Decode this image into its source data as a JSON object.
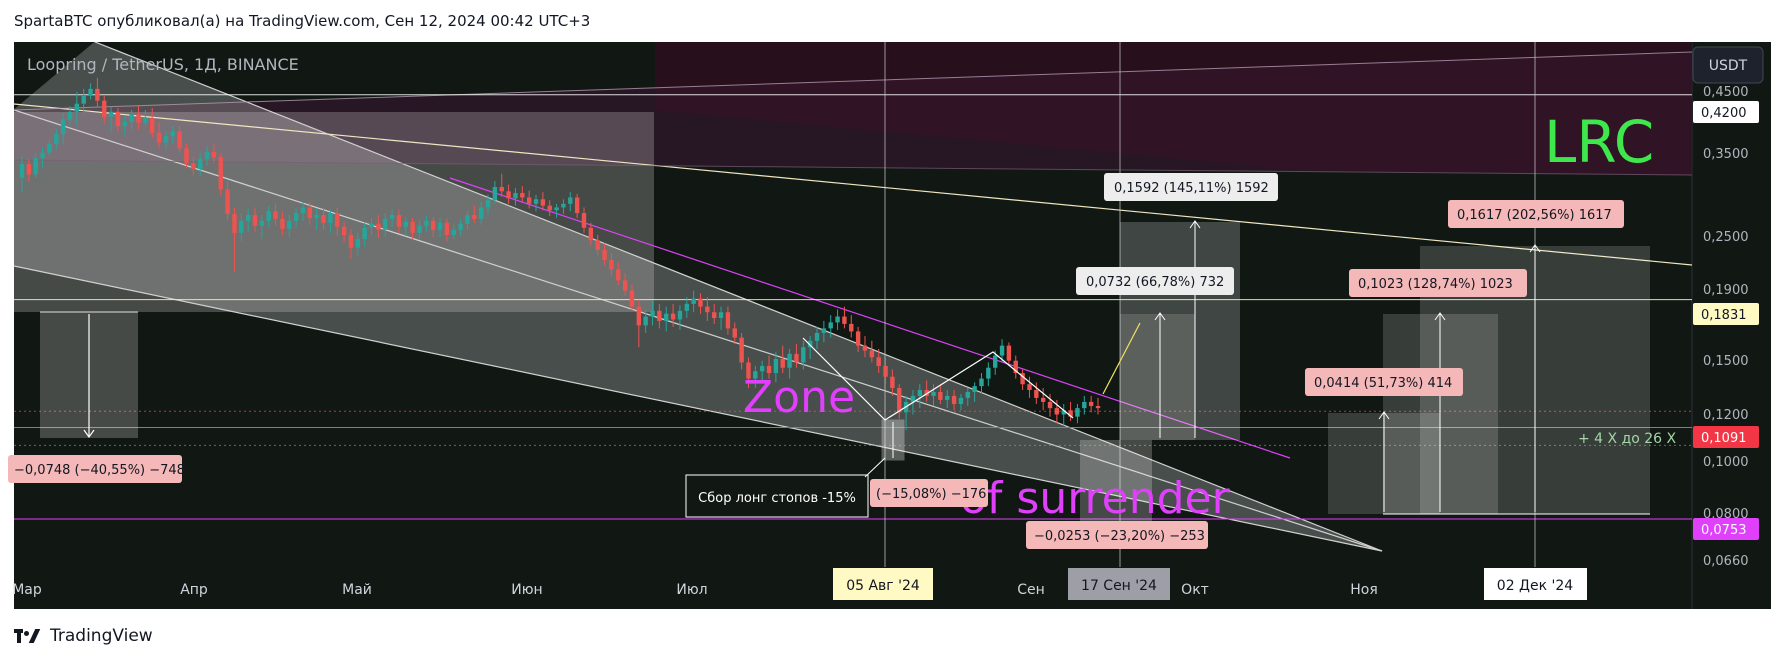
{
  "header": {
    "caption": "SpartaBTC опубликовал(а) на TradingView.com, Сен 12, 2024 00:42 UTC+3"
  },
  "footer": {
    "brand": "TradingView"
  },
  "colors": {
    "bg": "#111814",
    "bull": "#26a69a",
    "bear": "#ef5350",
    "magenta": "#e040fb",
    "white": "#ffffff",
    "lime": "#3ee84c",
    "yellow": "#f2e35e"
  },
  "chart_data": {
    "type": "candlestick",
    "symbol_label": "Loopring / TetherUS, 1Д, BINANCE",
    "currency": "USDT",
    "watermark": "LRC",
    "scale": "log",
    "ylim": [
      0.062,
      0.52
    ],
    "x_months": [
      "Мар",
      "Апр",
      "Май",
      "Июн",
      "Июл",
      "Авг",
      "Сен",
      "Окт",
      "Ноя",
      "Дек"
    ],
    "x_highlight": [
      {
        "label": "05 Авг '24"
      },
      {
        "label": "17 Сен '24"
      },
      {
        "label": "02 Дек '24"
      }
    ],
    "y_ticks": [
      "0,4500",
      "0,3500",
      "0,2500",
      "0,1900",
      "0,1500",
      "0,1200",
      "0,1000",
      "0,0800",
      "0,0660"
    ],
    "price_badges": [
      {
        "label": "0,4200",
        "price": 0.42
      },
      {
        "label": "0,1831",
        "price": 0.1831
      },
      {
        "label": "0,1091",
        "price": 0.1091
      },
      {
        "label": "0,0753",
        "price": 0.0753
      }
    ],
    "texts": {
      "zone": "Zone",
      "surrender": "of surrender",
      "stop_hunt": "Сбор лонг стопов -15%",
      "multiplier": "+ 4 X до 26 X"
    },
    "measure_labels": [
      {
        "label": "−0,0748 (−40,55%) −748"
      },
      {
        "label": "(−15,08%) −176"
      },
      {
        "label": "−0,0253 (−23,20%) −253"
      },
      {
        "label": "0,1592 (145,11%) 1592"
      },
      {
        "label": "0,0732 (66,78%) 732"
      },
      {
        "label": "0,1617 (202,56%) 1617"
      },
      {
        "label": "0,1023 (128,74%) 1023"
      },
      {
        "label": "0,0414 (51,73%) 414"
      }
    ],
    "candles": [
      {
        "x": 0,
        "o": 0.3,
        "h": 0.327,
        "l": 0.283,
        "c": 0.317
      },
      {
        "x": 1,
        "o": 0.317,
        "h": 0.324,
        "l": 0.295,
        "c": 0.304
      },
      {
        "x": 2,
        "o": 0.304,
        "h": 0.331,
        "l": 0.299,
        "c": 0.325
      },
      {
        "x": 3,
        "o": 0.325,
        "h": 0.339,
        "l": 0.313,
        "c": 0.332
      },
      {
        "x": 4,
        "o": 0.332,
        "h": 0.351,
        "l": 0.328,
        "c": 0.344
      },
      {
        "x": 5,
        "o": 0.344,
        "h": 0.366,
        "l": 0.336,
        "c": 0.358
      },
      {
        "x": 6,
        "o": 0.358,
        "h": 0.39,
        "l": 0.345,
        "c": 0.38
      },
      {
        "x": 7,
        "o": 0.38,
        "h": 0.401,
        "l": 0.372,
        "c": 0.392
      },
      {
        "x": 8,
        "o": 0.392,
        "h": 0.425,
        "l": 0.37,
        "c": 0.405
      },
      {
        "x": 9,
        "o": 0.405,
        "h": 0.43,
        "l": 0.389,
        "c": 0.418
      },
      {
        "x": 10,
        "o": 0.418,
        "h": 0.44,
        "l": 0.412,
        "c": 0.43
      },
      {
        "x": 11,
        "o": 0.43,
        "h": 0.45,
        "l": 0.399,
        "c": 0.41
      },
      {
        "x": 12,
        "o": 0.41,
        "h": 0.418,
        "l": 0.375,
        "c": 0.384
      },
      {
        "x": 13,
        "o": 0.384,
        "h": 0.4,
        "l": 0.361,
        "c": 0.392
      },
      {
        "x": 14,
        "o": 0.392,
        "h": 0.398,
        "l": 0.362,
        "c": 0.37
      },
      {
        "x": 15,
        "o": 0.37,
        "h": 0.385,
        "l": 0.357,
        "c": 0.376
      },
      {
        "x": 16,
        "o": 0.376,
        "h": 0.395,
        "l": 0.365,
        "c": 0.388
      },
      {
        "x": 17,
        "o": 0.388,
        "h": 0.401,
        "l": 0.365,
        "c": 0.375
      },
      {
        "x": 18,
        "o": 0.375,
        "h": 0.395,
        "l": 0.37,
        "c": 0.382
      },
      {
        "x": 19,
        "o": 0.382,
        "h": 0.398,
        "l": 0.352,
        "c": 0.36
      },
      {
        "x": 20,
        "o": 0.36,
        "h": 0.375,
        "l": 0.339,
        "c": 0.346
      },
      {
        "x": 21,
        "o": 0.346,
        "h": 0.362,
        "l": 0.336,
        "c": 0.355
      },
      {
        "x": 22,
        "o": 0.355,
        "h": 0.37,
        "l": 0.345,
        "c": 0.362
      },
      {
        "x": 23,
        "o": 0.362,
        "h": 0.371,
        "l": 0.332,
        "c": 0.338
      },
      {
        "x": 24,
        "o": 0.338,
        "h": 0.345,
        "l": 0.312,
        "c": 0.318
      },
      {
        "x": 25,
        "o": 0.318,
        "h": 0.327,
        "l": 0.303,
        "c": 0.311
      },
      {
        "x": 26,
        "o": 0.311,
        "h": 0.332,
        "l": 0.302,
        "c": 0.324
      },
      {
        "x": 27,
        "o": 0.324,
        "h": 0.341,
        "l": 0.315,
        "c": 0.333
      },
      {
        "x": 28,
        "o": 0.333,
        "h": 0.345,
        "l": 0.319,
        "c": 0.326
      },
      {
        "x": 29,
        "o": 0.326,
        "h": 0.331,
        "l": 0.279,
        "c": 0.286
      },
      {
        "x": 30,
        "o": 0.286,
        "h": 0.296,
        "l": 0.252,
        "c": 0.259
      },
      {
        "x": 31,
        "o": 0.259,
        "h": 0.266,
        "l": 0.205,
        "c": 0.24
      },
      {
        "x": 32,
        "o": 0.24,
        "h": 0.26,
        "l": 0.232,
        "c": 0.252
      },
      {
        "x": 33,
        "o": 0.252,
        "h": 0.265,
        "l": 0.241,
        "c": 0.258
      },
      {
        "x": 34,
        "o": 0.258,
        "h": 0.266,
        "l": 0.241,
        "c": 0.247
      },
      {
        "x": 35,
        "o": 0.247,
        "h": 0.258,
        "l": 0.234,
        "c": 0.252
      },
      {
        "x": 36,
        "o": 0.252,
        "h": 0.268,
        "l": 0.245,
        "c": 0.262
      },
      {
        "x": 37,
        "o": 0.262,
        "h": 0.27,
        "l": 0.247,
        "c": 0.254
      },
      {
        "x": 38,
        "o": 0.254,
        "h": 0.262,
        "l": 0.238,
        "c": 0.244
      },
      {
        "x": 39,
        "o": 0.244,
        "h": 0.258,
        "l": 0.236,
        "c": 0.252
      },
      {
        "x": 40,
        "o": 0.252,
        "h": 0.265,
        "l": 0.245,
        "c": 0.26
      },
      {
        "x": 41,
        "o": 0.26,
        "h": 0.272,
        "l": 0.252,
        "c": 0.266
      },
      {
        "x": 42,
        "o": 0.266,
        "h": 0.272,
        "l": 0.248,
        "c": 0.255
      },
      {
        "x": 43,
        "o": 0.255,
        "h": 0.265,
        "l": 0.243,
        "c": 0.258
      },
      {
        "x": 44,
        "o": 0.258,
        "h": 0.266,
        "l": 0.243,
        "c": 0.25
      },
      {
        "x": 45,
        "o": 0.25,
        "h": 0.264,
        "l": 0.24,
        "c": 0.26
      },
      {
        "x": 46,
        "o": 0.26,
        "h": 0.266,
        "l": 0.237,
        "c": 0.246
      },
      {
        "x": 47,
        "o": 0.246,
        "h": 0.251,
        "l": 0.231,
        "c": 0.238
      },
      {
        "x": 48,
        "o": 0.238,
        "h": 0.244,
        "l": 0.216,
        "c": 0.226
      },
      {
        "x": 49,
        "o": 0.226,
        "h": 0.24,
        "l": 0.219,
        "c": 0.234
      },
      {
        "x": 50,
        "o": 0.234,
        "h": 0.25,
        "l": 0.227,
        "c": 0.245
      },
      {
        "x": 51,
        "o": 0.245,
        "h": 0.255,
        "l": 0.238,
        "c": 0.249
      },
      {
        "x": 52,
        "o": 0.249,
        "h": 0.258,
        "l": 0.235,
        "c": 0.243
      },
      {
        "x": 53,
        "o": 0.243,
        "h": 0.26,
        "l": 0.236,
        "c": 0.254
      },
      {
        "x": 54,
        "o": 0.254,
        "h": 0.264,
        "l": 0.246,
        "c": 0.258
      },
      {
        "x": 55,
        "o": 0.258,
        "h": 0.264,
        "l": 0.24,
        "c": 0.246
      },
      {
        "x": 56,
        "o": 0.246,
        "h": 0.256,
        "l": 0.237,
        "c": 0.251
      },
      {
        "x": 57,
        "o": 0.251,
        "h": 0.255,
        "l": 0.233,
        "c": 0.24
      },
      {
        "x": 58,
        "o": 0.24,
        "h": 0.252,
        "l": 0.234,
        "c": 0.247
      },
      {
        "x": 59,
        "o": 0.247,
        "h": 0.257,
        "l": 0.241,
        "c": 0.252
      },
      {
        "x": 60,
        "o": 0.252,
        "h": 0.256,
        "l": 0.236,
        "c": 0.243
      },
      {
        "x": 61,
        "o": 0.243,
        "h": 0.255,
        "l": 0.236,
        "c": 0.25
      },
      {
        "x": 62,
        "o": 0.25,
        "h": 0.254,
        "l": 0.232,
        "c": 0.238
      },
      {
        "x": 63,
        "o": 0.238,
        "h": 0.248,
        "l": 0.234,
        "c": 0.243
      },
      {
        "x": 64,
        "o": 0.243,
        "h": 0.254,
        "l": 0.237,
        "c": 0.249
      },
      {
        "x": 65,
        "o": 0.249,
        "h": 0.262,
        "l": 0.243,
        "c": 0.258
      },
      {
        "x": 66,
        "o": 0.258,
        "h": 0.268,
        "l": 0.25,
        "c": 0.254
      },
      {
        "x": 67,
        "o": 0.254,
        "h": 0.272,
        "l": 0.248,
        "c": 0.266
      },
      {
        "x": 68,
        "o": 0.266,
        "h": 0.28,
        "l": 0.259,
        "c": 0.274
      },
      {
        "x": 69,
        "o": 0.274,
        "h": 0.296,
        "l": 0.27,
        "c": 0.289
      },
      {
        "x": 70,
        "o": 0.289,
        "h": 0.305,
        "l": 0.278,
        "c": 0.284
      },
      {
        "x": 71,
        "o": 0.284,
        "h": 0.292,
        "l": 0.27,
        "c": 0.276
      },
      {
        "x": 72,
        "o": 0.276,
        "h": 0.288,
        "l": 0.268,
        "c": 0.282
      },
      {
        "x": 73,
        "o": 0.282,
        "h": 0.29,
        "l": 0.272,
        "c": 0.277
      },
      {
        "x": 74,
        "o": 0.277,
        "h": 0.285,
        "l": 0.265,
        "c": 0.27
      },
      {
        "x": 75,
        "o": 0.27,
        "h": 0.28,
        "l": 0.262,
        "c": 0.275
      },
      {
        "x": 76,
        "o": 0.275,
        "h": 0.283,
        "l": 0.263,
        "c": 0.268
      },
      {
        "x": 77,
        "o": 0.268,
        "h": 0.274,
        "l": 0.257,
        "c": 0.263
      },
      {
        "x": 78,
        "o": 0.263,
        "h": 0.27,
        "l": 0.255,
        "c": 0.266
      },
      {
        "x": 79,
        "o": 0.266,
        "h": 0.275,
        "l": 0.259,
        "c": 0.27
      },
      {
        "x": 80,
        "o": 0.27,
        "h": 0.283,
        "l": 0.262,
        "c": 0.277
      },
      {
        "x": 81,
        "o": 0.277,
        "h": 0.281,
        "l": 0.255,
        "c": 0.26
      },
      {
        "x": 82,
        "o": 0.26,
        "h": 0.266,
        "l": 0.24,
        "c": 0.245
      },
      {
        "x": 83,
        "o": 0.245,
        "h": 0.25,
        "l": 0.228,
        "c": 0.233
      },
      {
        "x": 84,
        "o": 0.233,
        "h": 0.238,
        "l": 0.219,
        "c": 0.224
      },
      {
        "x": 85,
        "o": 0.224,
        "h": 0.23,
        "l": 0.21,
        "c": 0.215
      },
      {
        "x": 86,
        "o": 0.215,
        "h": 0.221,
        "l": 0.202,
        "c": 0.207
      },
      {
        "x": 87,
        "o": 0.207,
        "h": 0.213,
        "l": 0.194,
        "c": 0.198
      },
      {
        "x": 88,
        "o": 0.198,
        "h": 0.204,
        "l": 0.186,
        "c": 0.19
      },
      {
        "x": 89,
        "o": 0.19,
        "h": 0.195,
        "l": 0.175,
        "c": 0.178
      },
      {
        "x": 90,
        "o": 0.178,
        "h": 0.183,
        "l": 0.151,
        "c": 0.165
      },
      {
        "x": 91,
        "o": 0.165,
        "h": 0.176,
        "l": 0.16,
        "c": 0.171
      },
      {
        "x": 92,
        "o": 0.171,
        "h": 0.182,
        "l": 0.165,
        "c": 0.175
      },
      {
        "x": 93,
        "o": 0.175,
        "h": 0.18,
        "l": 0.163,
        "c": 0.168
      },
      {
        "x": 94,
        "o": 0.168,
        "h": 0.178,
        "l": 0.161,
        "c": 0.173
      },
      {
        "x": 95,
        "o": 0.173,
        "h": 0.18,
        "l": 0.164,
        "c": 0.169
      },
      {
        "x": 96,
        "o": 0.169,
        "h": 0.179,
        "l": 0.162,
        "c": 0.175
      },
      {
        "x": 97,
        "o": 0.175,
        "h": 0.185,
        "l": 0.17,
        "c": 0.18
      },
      {
        "x": 98,
        "o": 0.18,
        "h": 0.19,
        "l": 0.174,
        "c": 0.184
      },
      {
        "x": 99,
        "o": 0.184,
        "h": 0.188,
        "l": 0.173,
        "c": 0.178
      },
      {
        "x": 100,
        "o": 0.178,
        "h": 0.185,
        "l": 0.168,
        "c": 0.174
      },
      {
        "x": 101,
        "o": 0.174,
        "h": 0.18,
        "l": 0.166,
        "c": 0.17
      },
      {
        "x": 102,
        "o": 0.17,
        "h": 0.178,
        "l": 0.162,
        "c": 0.174
      },
      {
        "x": 103,
        "o": 0.174,
        "h": 0.178,
        "l": 0.159,
        "c": 0.163
      },
      {
        "x": 104,
        "o": 0.163,
        "h": 0.167,
        "l": 0.153,
        "c": 0.157
      },
      {
        "x": 105,
        "o": 0.157,
        "h": 0.16,
        "l": 0.138,
        "c": 0.142
      },
      {
        "x": 106,
        "o": 0.142,
        "h": 0.145,
        "l": 0.128,
        "c": 0.133
      },
      {
        "x": 107,
        "o": 0.133,
        "h": 0.14,
        "l": 0.128,
        "c": 0.137
      },
      {
        "x": 108,
        "o": 0.137,
        "h": 0.143,
        "l": 0.132,
        "c": 0.14
      },
      {
        "x": 109,
        "o": 0.14,
        "h": 0.146,
        "l": 0.133,
        "c": 0.136
      },
      {
        "x": 110,
        "o": 0.136,
        "h": 0.148,
        "l": 0.131,
        "c": 0.144
      },
      {
        "x": 111,
        "o": 0.144,
        "h": 0.152,
        "l": 0.136,
        "c": 0.139
      },
      {
        "x": 112,
        "o": 0.139,
        "h": 0.15,
        "l": 0.133,
        "c": 0.147
      },
      {
        "x": 113,
        "o": 0.147,
        "h": 0.153,
        "l": 0.139,
        "c": 0.142
      },
      {
        "x": 114,
        "o": 0.142,
        "h": 0.155,
        "l": 0.138,
        "c": 0.151
      },
      {
        "x": 115,
        "o": 0.151,
        "h": 0.158,
        "l": 0.144,
        "c": 0.155
      },
      {
        "x": 116,
        "o": 0.155,
        "h": 0.164,
        "l": 0.15,
        "c": 0.16
      },
      {
        "x": 117,
        "o": 0.16,
        "h": 0.168,
        "l": 0.154,
        "c": 0.163
      },
      {
        "x": 118,
        "o": 0.163,
        "h": 0.172,
        "l": 0.157,
        "c": 0.167
      },
      {
        "x": 119,
        "o": 0.167,
        "h": 0.176,
        "l": 0.162,
        "c": 0.171
      },
      {
        "x": 120,
        "o": 0.171,
        "h": 0.178,
        "l": 0.163,
        "c": 0.166
      },
      {
        "x": 121,
        "o": 0.166,
        "h": 0.172,
        "l": 0.157,
        "c": 0.161
      },
      {
        "x": 122,
        "o": 0.161,
        "h": 0.164,
        "l": 0.148,
        "c": 0.152
      },
      {
        "x": 123,
        "o": 0.152,
        "h": 0.158,
        "l": 0.145,
        "c": 0.149
      },
      {
        "x": 124,
        "o": 0.149,
        "h": 0.155,
        "l": 0.142,
        "c": 0.145
      },
      {
        "x": 125,
        "o": 0.145,
        "h": 0.15,
        "l": 0.136,
        "c": 0.14
      },
      {
        "x": 126,
        "o": 0.14,
        "h": 0.144,
        "l": 0.13,
        "c": 0.134
      },
      {
        "x": 127,
        "o": 0.134,
        "h": 0.138,
        "l": 0.124,
        "c": 0.128
      },
      {
        "x": 128,
        "o": 0.128,
        "h": 0.13,
        "l": 0.113,
        "c": 0.116
      },
      {
        "x": 129,
        "o": 0.116,
        "h": 0.124,
        "l": 0.108,
        "c": 0.121
      },
      {
        "x": 130,
        "o": 0.121,
        "h": 0.127,
        "l": 0.115,
        "c": 0.124
      },
      {
        "x": 131,
        "o": 0.124,
        "h": 0.13,
        "l": 0.118,
        "c": 0.127
      },
      {
        "x": 132,
        "o": 0.127,
        "h": 0.132,
        "l": 0.121,
        "c": 0.124
      },
      {
        "x": 133,
        "o": 0.124,
        "h": 0.13,
        "l": 0.119,
        "c": 0.126
      },
      {
        "x": 134,
        "o": 0.126,
        "h": 0.129,
        "l": 0.12,
        "c": 0.122
      },
      {
        "x": 135,
        "o": 0.122,
        "h": 0.127,
        "l": 0.118,
        "c": 0.124
      },
      {
        "x": 136,
        "o": 0.124,
        "h": 0.127,
        "l": 0.117,
        "c": 0.12
      },
      {
        "x": 137,
        "o": 0.12,
        "h": 0.125,
        "l": 0.117,
        "c": 0.123
      },
      {
        "x": 138,
        "o": 0.123,
        "h": 0.128,
        "l": 0.119,
        "c": 0.126
      },
      {
        "x": 139,
        "o": 0.126,
        "h": 0.131,
        "l": 0.121,
        "c": 0.129
      },
      {
        "x": 140,
        "o": 0.129,
        "h": 0.136,
        "l": 0.125,
        "c": 0.133
      },
      {
        "x": 141,
        "o": 0.133,
        "h": 0.142,
        "l": 0.129,
        "c": 0.139
      },
      {
        "x": 142,
        "o": 0.139,
        "h": 0.149,
        "l": 0.135,
        "c": 0.146
      },
      {
        "x": 143,
        "o": 0.146,
        "h": 0.156,
        "l": 0.142,
        "c": 0.152
      },
      {
        "x": 144,
        "o": 0.152,
        "h": 0.154,
        "l": 0.14,
        "c": 0.143
      },
      {
        "x": 145,
        "o": 0.143,
        "h": 0.146,
        "l": 0.133,
        "c": 0.136
      },
      {
        "x": 146,
        "o": 0.136,
        "h": 0.138,
        "l": 0.127,
        "c": 0.13
      },
      {
        "x": 147,
        "o": 0.13,
        "h": 0.134,
        "l": 0.123,
        "c": 0.127
      },
      {
        "x": 148,
        "o": 0.127,
        "h": 0.131,
        "l": 0.12,
        "c": 0.123
      },
      {
        "x": 149,
        "o": 0.123,
        "h": 0.128,
        "l": 0.117,
        "c": 0.121
      },
      {
        "x": 150,
        "o": 0.121,
        "h": 0.125,
        "l": 0.114,
        "c": 0.118
      },
      {
        "x": 151,
        "o": 0.118,
        "h": 0.122,
        "l": 0.111,
        "c": 0.115
      },
      {
        "x": 152,
        "o": 0.115,
        "h": 0.12,
        "l": 0.11,
        "c": 0.117
      },
      {
        "x": 153,
        "o": 0.117,
        "h": 0.121,
        "l": 0.112,
        "c": 0.114
      },
      {
        "x": 154,
        "o": 0.114,
        "h": 0.12,
        "l": 0.111,
        "c": 0.118
      },
      {
        "x": 155,
        "o": 0.118,
        "h": 0.124,
        "l": 0.115,
        "c": 0.121
      },
      {
        "x": 156,
        "o": 0.121,
        "h": 0.124,
        "l": 0.116,
        "c": 0.119
      },
      {
        "x": 157,
        "o": 0.119,
        "h": 0.123,
        "l": 0.115,
        "c": 0.118
      }
    ]
  }
}
